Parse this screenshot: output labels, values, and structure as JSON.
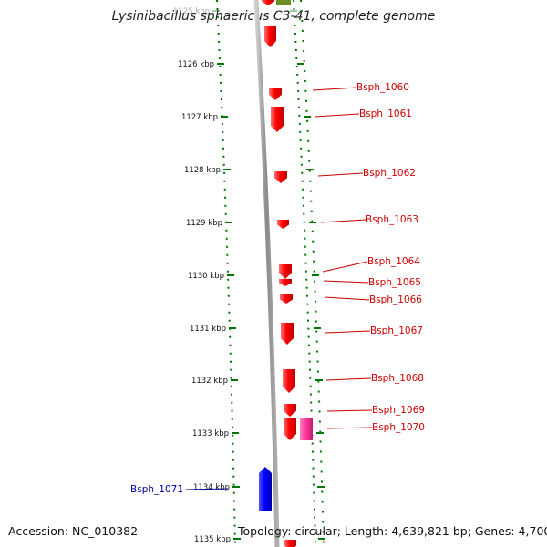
{
  "title": "Lysinibacillus sphaericus C3-41, complete genome",
  "footer": {
    "accession": "Accession: NC_010382",
    "summary": "Topology: circular; Length: 4,639,821 bp; Genes: 4,700"
  },
  "ruler_ticks": [
    {
      "label": "1125 kbp",
      "faded": true
    },
    {
      "label": "1126 kbp"
    },
    {
      "label": "1127 kbp"
    },
    {
      "label": "1128 kbp"
    },
    {
      "label": "1129 kbp"
    },
    {
      "label": "1130 kbp"
    },
    {
      "label": "1131 kbp"
    },
    {
      "label": "1132 kbp"
    },
    {
      "label": "1133 kbp"
    },
    {
      "label": "1134 kbp"
    },
    {
      "label": "1135 kbp"
    }
  ],
  "genes": [
    {
      "name": "Bsph_1060",
      "color": "#ff0000"
    },
    {
      "name": "Bsph_1061",
      "color": "#ff0000"
    },
    {
      "name": "Bsph_1062",
      "color": "#ff0000"
    },
    {
      "name": "Bsph_1063",
      "color": "#ff0000"
    },
    {
      "name": "Bsph_1064",
      "color": "#ff0000"
    },
    {
      "name": "Bsph_1065",
      "color": "#ff0000"
    },
    {
      "name": "Bsph_1066",
      "color": "#ff0000"
    },
    {
      "name": "Bsph_1067",
      "color": "#ff0000"
    },
    {
      "name": "Bsph_1068",
      "color": "#ff0000"
    },
    {
      "name": "Bsph_1069",
      "color": "#ff0000"
    },
    {
      "name": "Bsph_1070",
      "color": "#ff0000"
    },
    {
      "name": "Bsph_1071",
      "color": "#0000ff"
    }
  ],
  "colors": {
    "forward_gene": "#ff0000",
    "reverse_gene": "#0000ff",
    "highlight_gene": "#ff3399",
    "label_forward": "#cc0000",
    "label_reverse": "#000099",
    "ruler_dots": "#007700",
    "backbone": "#909090"
  }
}
